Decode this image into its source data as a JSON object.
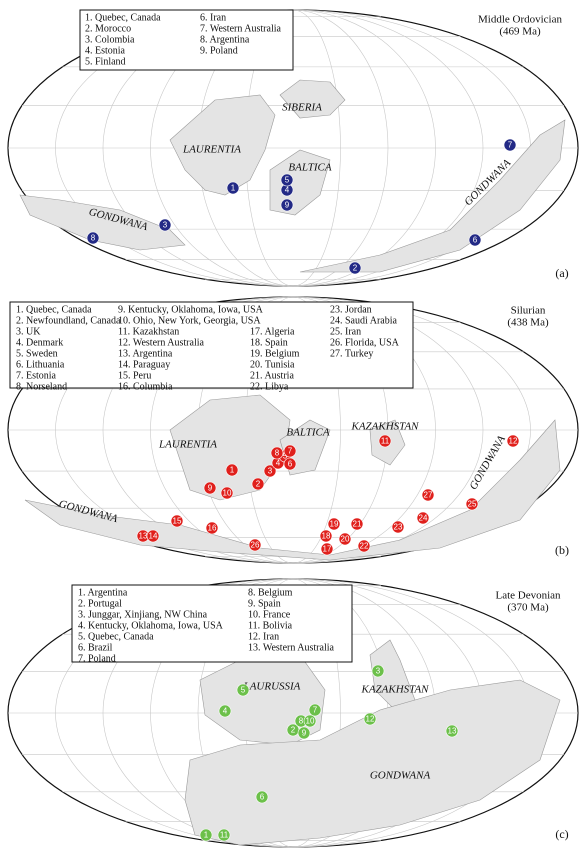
{
  "panels": [
    {
      "title": "Middle Ordovician",
      "age": "(469 Ma)",
      "panel_label": "(a)",
      "marker_color": "#232a86",
      "legend": [
        "1. Quebec, Canada",
        "2. Morocco",
        "3. Colombia",
        "4. Estonia",
        "5. Finland",
        "6. Iran",
        "7. Western Australia",
        "8. Argentina",
        "9. Poland"
      ],
      "regions": [
        "LAURENTIA",
        "SIBERIA",
        "BALTICA",
        "GONDWANA",
        "GONDWANA"
      ],
      "markers": [
        "1",
        "2",
        "3",
        "4",
        "5",
        "6",
        "7",
        "8",
        "9"
      ]
    },
    {
      "title": "Silurian",
      "age": "(438 Ma)",
      "panel_label": "(b)",
      "marker_color": "#e0201c",
      "legend": [
        "1. Quebec, Canada",
        "2. Newfoundland, Canada",
        "3. UK",
        "4. Denmark",
        "5. Sweden",
        "6. Lithuania",
        "7. Estonia",
        "8. Norseland",
        "9. Kentucky, Oklahoma, Iowa, USA",
        "10. Ohio, New York, Georgia, USA",
        "11. Kazakhstan",
        "12. Western Australia",
        "13. Argentina",
        "14. Paraguay",
        "15. Peru",
        "16. Columbia",
        "17. Algeria",
        "18. Spain",
        "19. Belgium",
        "20. Tunisia",
        "21. Austria",
        "22. Libya",
        "23. Jordan",
        "24. Saudi Arabia",
        "25. Iran",
        "26. Florida, USA",
        "27. Turkey"
      ],
      "regions": [
        "LAURENTIA",
        "BALTICA",
        "KAZAKHSTAN",
        "GONDWANA",
        "GONDWANA"
      ],
      "markers": [
        "1",
        "2",
        "3",
        "4",
        "5",
        "6",
        "7",
        "8",
        "9",
        "10",
        "11",
        "12",
        "13",
        "14",
        "15",
        "16",
        "17",
        "18",
        "19",
        "20",
        "21",
        "22",
        "23",
        "24",
        "25",
        "26",
        "27"
      ]
    },
    {
      "title": "Late Devonian",
      "age": "(370 Ma)",
      "panel_label": "(c)",
      "marker_color": "#6cc04a",
      "legend": [
        "1. Argentina",
        "2. Portugal",
        "3. Junggar, Xinjiang, NW China",
        "4. Kentucky, Oklahoma, Iowa, USA",
        "5. Quebec, Canada",
        "6. Brazil",
        "7. Poland",
        "8. Belgium",
        "9. Spain",
        "10. France",
        "11. Bolivia",
        "12. Iran",
        "13. Western Australia"
      ],
      "regions": [
        "LAURUSSIA",
        "KAZAKHSTAN",
        "GONDWANA"
      ],
      "markers": [
        "1",
        "2",
        "3",
        "4",
        "5",
        "6",
        "7",
        "8",
        "9",
        "10",
        "11",
        "12",
        "13"
      ]
    }
  ]
}
